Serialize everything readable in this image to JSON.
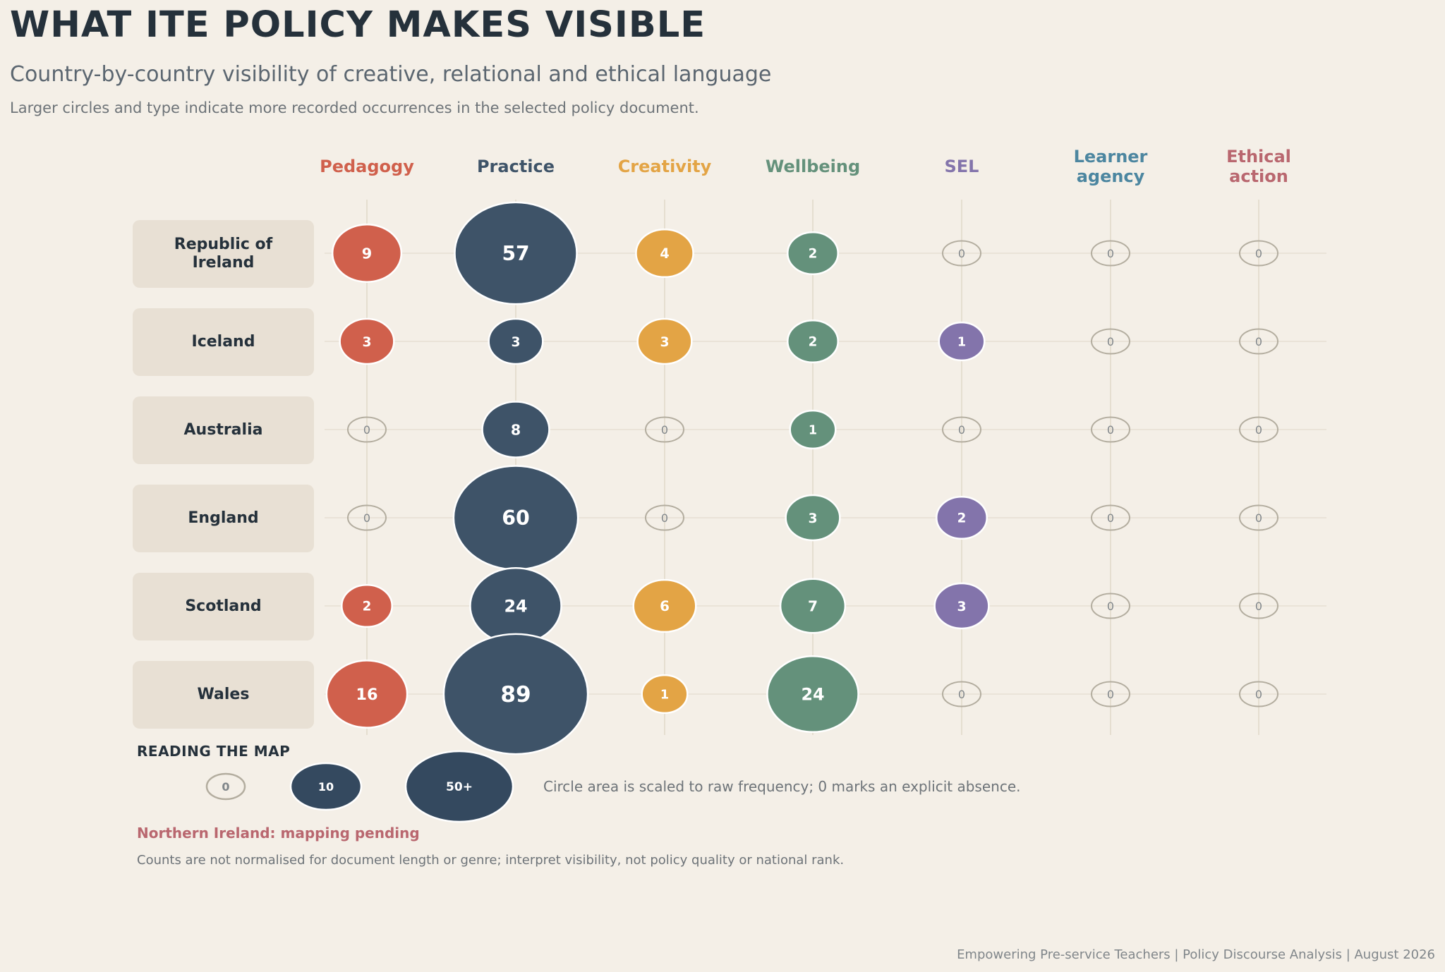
{
  "header": {
    "title": "WHAT ITE POLICY MAKES VISIBLE",
    "subtitle": "Country-by-country visibility of creative, relational and ethical language",
    "note": "Larger circles and type indicate more recorded occurrences in the selected policy document."
  },
  "legend": {
    "title": "READING THE MAP",
    "samples": [
      "0",
      "10",
      "50+"
    ],
    "text": "Circle area is scaled to raw frequency; 0 marks an explicit absence."
  },
  "notes": {
    "pending": "Northern Ireland: mapping pending",
    "caveat": "Counts are not normalised for document length or genre; interpret visibility, not policy quality or national rank."
  },
  "footer": "Empowering Pre-service Teachers | Policy Discourse Analysis | August 2026",
  "chart_data": {
    "type": "bubble-matrix",
    "categories": [
      "Pedagogy",
      "Practice",
      "Creativity",
      "Wellbeing",
      "SEL",
      "Learner agency",
      "Ethical action"
    ],
    "category_colors": [
      "#d0604c",
      "#3e5368",
      "#e3a445",
      "#64917b",
      "#8374ab",
      "#4c86a0",
      "#b9676f"
    ],
    "rows": [
      {
        "name": "Republic of Ireland",
        "values": [
          9,
          57,
          4,
          2,
          0,
          0,
          0
        ]
      },
      {
        "name": "Iceland",
        "values": [
          3,
          3,
          3,
          2,
          1,
          0,
          0
        ]
      },
      {
        "name": "Australia",
        "values": [
          0,
          8,
          0,
          1,
          0,
          0,
          0
        ]
      },
      {
        "name": "England",
        "values": [
          0,
          60,
          0,
          3,
          2,
          0,
          0
        ]
      },
      {
        "name": "Scotland",
        "values": [
          2,
          24,
          6,
          7,
          3,
          0,
          0
        ]
      },
      {
        "name": "Wales",
        "values": [
          16,
          89,
          1,
          24,
          0,
          0,
          0
        ]
      }
    ]
  }
}
